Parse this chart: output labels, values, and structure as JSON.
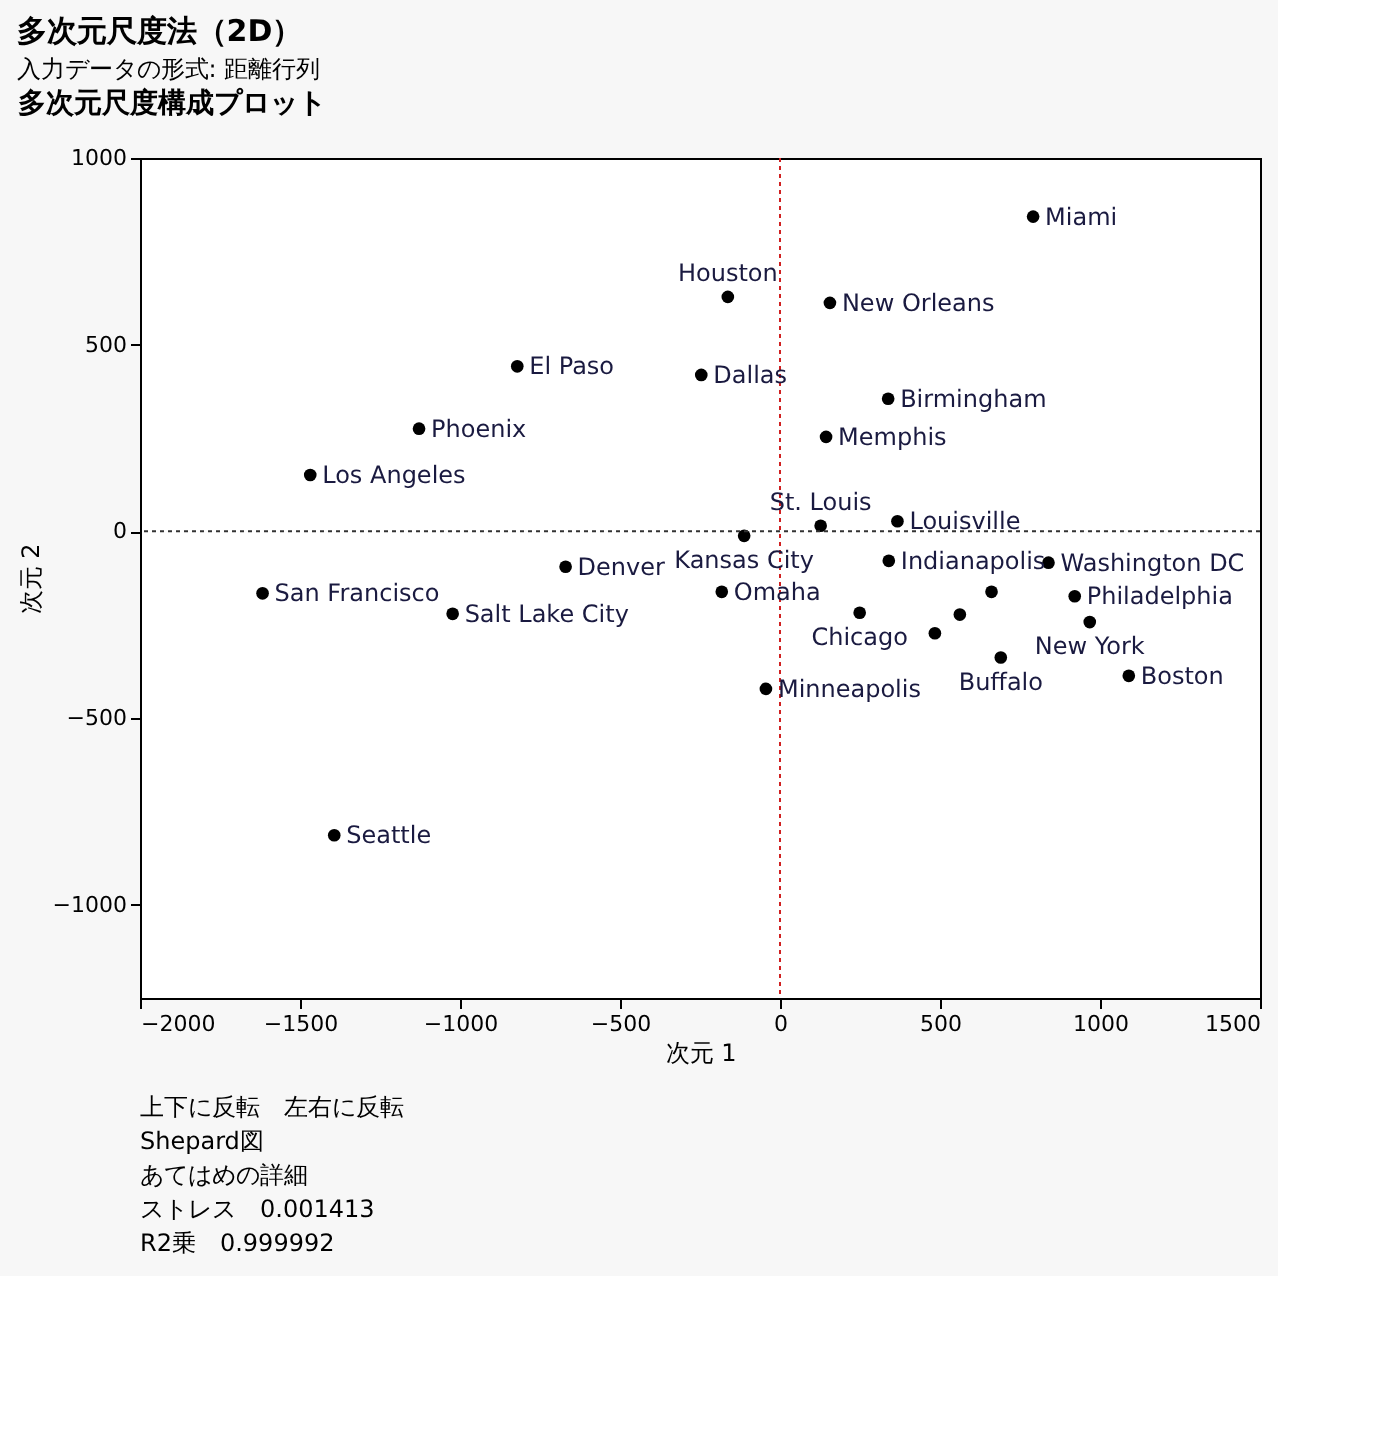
{
  "chart_data": {
    "type": "scatter",
    "title": "多次元尺度法（2D）",
    "subtitle": "入力データの形式: 距離行列",
    "xlabel": "次元 1",
    "ylabel": "次元 2",
    "series": [
      {
        "color": "#000000",
        "x": [
          791,
          -163,
          156,
          -821,
          -246,
          338,
          -1128,
          144,
          -1468,
          127,
          367,
          -112,
          839,
          -1617,
          -670,
          340,
          -182,
          921,
          -1023,
          249,
          661,
          562,
          484,
          968,
          690,
          1090,
          -44,
          -1393
        ],
        "values": [
          843,
          628,
          612,
          442,
          419,
          355,
          275,
          253,
          151,
          15,
          27,
          -12,
          -84,
          -166,
          -95,
          -79,
          -162,
          -174,
          -221,
          -218,
          -162,
          -223,
          -273,
          -243,
          -338,
          -387,
          -422,
          -814
        ]
      }
    ],
    "xlim": [
      -2000,
      1500
    ],
    "xticks": [
      -2000,
      -1500,
      -1000,
      -500,
      0,
      500,
      1000,
      1500
    ],
    "ylim": [
      -1250,
      1000
    ],
    "yticks": [
      -1000,
      -500,
      0,
      500,
      1000
    ],
    "grid": false,
    "legend": false,
    "marker": "circle",
    "ref_lines": [
      {
        "axis": "x",
        "value": 0,
        "color": "#d02020",
        "line_style": "dotted"
      },
      {
        "axis": "y",
        "value": 0,
        "color": "#333333",
        "line_style": "dotted"
      }
    ],
    "annotations": [
      "多次元尺度構成プロット",
      {
        "text": "Miami",
        "x": 791,
        "y": 843
      },
      {
        "text": "Houston",
        "x": -163,
        "y": 628
      },
      {
        "text": "New Orleans",
        "x": 156,
        "y": 612
      },
      {
        "text": "El Paso",
        "x": -821,
        "y": 442
      },
      {
        "text": "Dallas",
        "x": -246,
        "y": 419
      },
      {
        "text": "Birmingham",
        "x": 338,
        "y": 355
      },
      {
        "text": "Phoenix",
        "x": -1128,
        "y": 275
      },
      {
        "text": "Memphis",
        "x": 144,
        "y": 253
      },
      {
        "text": "Los Angeles",
        "x": -1468,
        "y": 151
      },
      {
        "text": "St. Louis",
        "x": 127,
        "y": 15
      },
      {
        "text": "Louisville",
        "x": 367,
        "y": 27
      },
      {
        "text": "Kansas City",
        "x": -112,
        "y": -12
      },
      {
        "text": "Washington DC",
        "x": 839,
        "y": -84
      },
      {
        "text": "San Francisco",
        "x": -1617,
        "y": -166
      },
      {
        "text": "Denver",
        "x": -670,
        "y": -95
      },
      {
        "text": "Indianapolis",
        "x": 340,
        "y": -79
      },
      {
        "text": "Omaha",
        "x": -182,
        "y": -162
      },
      {
        "text": "Philadelphia",
        "x": 921,
        "y": -174
      },
      {
        "text": "Salt Lake City",
        "x": -1023,
        "y": -221
      },
      {
        "text": "Chicago",
        "x": 249,
        "y": -218
      },
      {
        "text": "New York",
        "x": 968,
        "y": -243
      },
      {
        "text": "Buffalo",
        "x": 690,
        "y": -338
      },
      {
        "text": "Boston",
        "x": 1090,
        "y": -387
      },
      {
        "text": "Minneapolis",
        "x": -44,
        "y": -422
      },
      {
        "text": "Seattle",
        "x": -1393,
        "y": -814
      },
      "上下に反転　左右に反転",
      "Shepard図",
      "あてはめの詳細",
      "ストレス　0.001413",
      "R2乗　0.999992"
    ]
  }
}
